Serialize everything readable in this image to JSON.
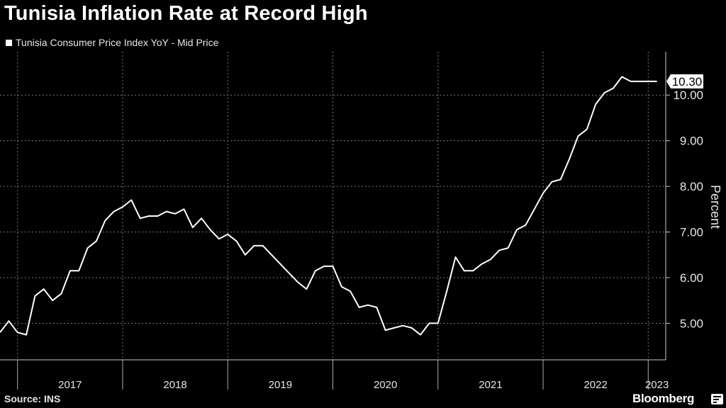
{
  "title": "Tunisia Inflation Rate at Record High",
  "legend": {
    "label": "Tunisia Consumer Price Index YoY - Mid Price",
    "color": "#ffffff"
  },
  "source": "Source: INS",
  "brand": "Bloomberg",
  "colors": {
    "background": "#000000",
    "line": "#ffffff",
    "grid": "#777777"
  },
  "chart_data": {
    "type": "line",
    "title": "Tunisia Inflation Rate at Record High",
    "xlabel": "",
    "ylabel": "Percent",
    "ylim": [
      4.2,
      10.95
    ],
    "yticks": [
      5.0,
      6.0,
      7.0,
      8.0,
      9.0,
      10.0
    ],
    "ytick_labels": [
      "5.00",
      "6.00",
      "7.00",
      "8.00",
      "9.00",
      "10.00"
    ],
    "x_categories": [
      "2017",
      "2018",
      "2019",
      "2020",
      "2021",
      "2022",
      "2023"
    ],
    "x_range": [
      "2016-11",
      "2023-03"
    ],
    "grid": true,
    "last_value_label": "10.30",
    "series": [
      {
        "name": "Tunisia Consumer Price Index YoY - Mid Price",
        "x": [
          "2016-11",
          "2016-12",
          "2017-01",
          "2017-02",
          "2017-03",
          "2017-04",
          "2017-05",
          "2017-06",
          "2017-07",
          "2017-08",
          "2017-09",
          "2017-10",
          "2017-11",
          "2017-12",
          "2018-01",
          "2018-02",
          "2018-03",
          "2018-04",
          "2018-05",
          "2018-06",
          "2018-07",
          "2018-08",
          "2018-09",
          "2018-10",
          "2018-11",
          "2018-12",
          "2019-01",
          "2019-02",
          "2019-03",
          "2019-04",
          "2019-05",
          "2019-06",
          "2019-07",
          "2019-08",
          "2019-09",
          "2019-10",
          "2019-11",
          "2019-12",
          "2020-01",
          "2020-02",
          "2020-03",
          "2020-04",
          "2020-05",
          "2020-06",
          "2020-07",
          "2020-08",
          "2020-09",
          "2020-10",
          "2020-11",
          "2020-12",
          "2021-01",
          "2021-02",
          "2021-03",
          "2021-04",
          "2021-05",
          "2021-06",
          "2021-07",
          "2021-08",
          "2021-09",
          "2021-10",
          "2021-11",
          "2021-12",
          "2022-01",
          "2022-02",
          "2022-03",
          "2022-04",
          "2022-05",
          "2022-06",
          "2022-07",
          "2022-08",
          "2022-09",
          "2022-10",
          "2022-11",
          "2022-12",
          "2023-01",
          "2023-02"
        ],
        "values": [
          4.8,
          5.05,
          4.8,
          4.75,
          5.6,
          5.75,
          5.5,
          5.65,
          6.15,
          6.15,
          6.65,
          6.8,
          7.25,
          7.45,
          7.55,
          7.7,
          7.3,
          7.35,
          7.35,
          7.45,
          7.4,
          7.5,
          7.1,
          7.3,
          7.05,
          6.85,
          6.95,
          6.8,
          6.5,
          6.7,
          6.7,
          6.5,
          6.3,
          6.1,
          5.9,
          5.75,
          6.15,
          6.25,
          6.25,
          5.8,
          5.7,
          5.35,
          5.4,
          5.35,
          4.85,
          4.9,
          4.95,
          4.9,
          4.75,
          5.0,
          5.0,
          5.7,
          6.45,
          6.15,
          6.15,
          6.3,
          6.4,
          6.6,
          6.65,
          7.05,
          7.15,
          7.5,
          7.85,
          8.1,
          8.15,
          8.6,
          9.1,
          9.25,
          9.8,
          10.05,
          10.15,
          10.4,
          10.3,
          10.3,
          10.3,
          10.3
        ]
      }
    ]
  }
}
